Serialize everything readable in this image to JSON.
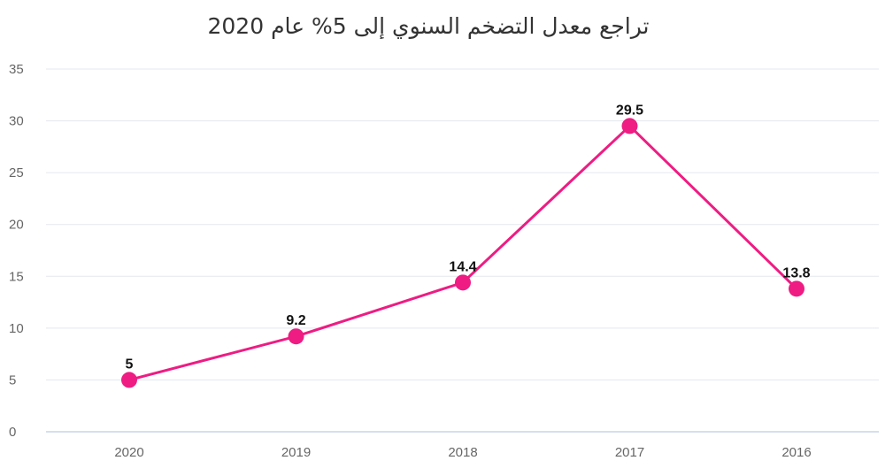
{
  "chart_data": {
    "type": "line",
    "title": "تراجع معدل التضخم السنوي إلى 5% عام 2020",
    "categories": [
      "2020",
      "2019",
      "2018",
      "2017",
      "2016"
    ],
    "series": [
      {
        "values": [
          5,
          9.2,
          14.4,
          29.5,
          13.8
        ],
        "color": "#ee1c83"
      }
    ],
    "data_labels": [
      "5",
      "9.2",
      "14.4",
      "29.5",
      "13.8"
    ],
    "yticks": [
      "0",
      "5",
      "10",
      "15",
      "20",
      "25",
      "30",
      "35"
    ],
    "ylim": [
      0,
      35
    ],
    "grid": true,
    "legend": "none"
  }
}
